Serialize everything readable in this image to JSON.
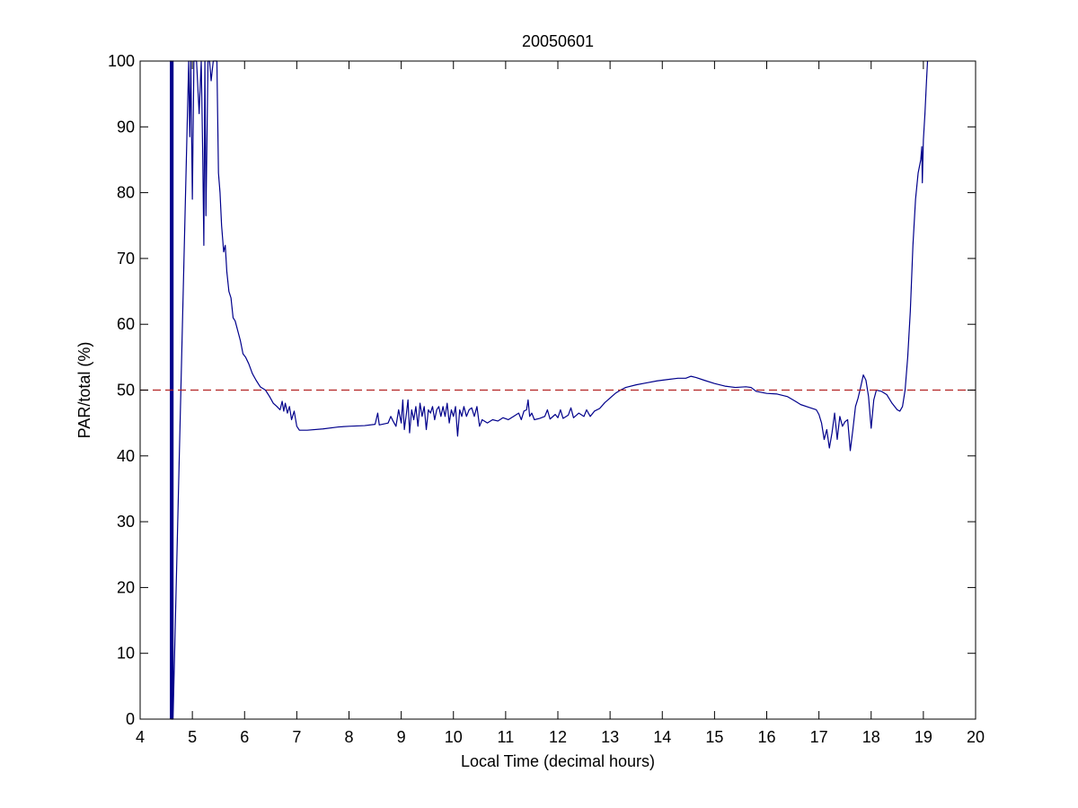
{
  "chart_data": {
    "type": "line",
    "title": "20050601",
    "xlabel": "Local Time (decimal hours)",
    "ylabel": "PAR/total (%)",
    "xlim": [
      4,
      20
    ],
    "ylim": [
      0,
      100
    ],
    "xticks": [
      4,
      5,
      6,
      7,
      8,
      9,
      10,
      11,
      12,
      13,
      14,
      15,
      16,
      17,
      18,
      19,
      20
    ],
    "yticks": [
      0,
      10,
      20,
      30,
      40,
      50,
      60,
      70,
      80,
      90,
      100
    ],
    "grid": false,
    "legend": "none",
    "series": [
      {
        "color": "#00008b",
        "style": "solid",
        "points": [
          [
            4.58,
            0
          ],
          [
            4.58,
            100
          ],
          [
            4.6,
            100
          ],
          [
            4.6,
            0
          ],
          [
            4.62,
            0
          ],
          [
            4.62,
            100
          ],
          [
            4.63,
            100
          ],
          [
            4.63,
            0
          ],
          [
            4.93,
            100
          ],
          [
            4.95,
            88.5
          ],
          [
            4.97,
            100
          ],
          [
            5.0,
            79
          ],
          [
            5.03,
            100
          ],
          [
            5.08,
            100
          ],
          [
            5.13,
            92
          ],
          [
            5.17,
            100
          ],
          [
            5.2,
            85
          ],
          [
            5.22,
            72
          ],
          [
            5.24,
            100
          ],
          [
            5.26,
            76.5
          ],
          [
            5.3,
            100
          ],
          [
            5.33,
            100
          ],
          [
            5.36,
            97
          ],
          [
            5.4,
            100
          ],
          [
            5.44,
            100
          ],
          [
            5.47,
            100
          ],
          [
            5.5,
            83
          ],
          [
            5.53,
            80
          ],
          [
            5.56,
            75
          ],
          [
            5.6,
            71
          ],
          [
            5.63,
            72
          ],
          [
            5.66,
            68
          ],
          [
            5.7,
            65
          ],
          [
            5.74,
            64
          ],
          [
            5.78,
            61
          ],
          [
            5.82,
            60.5
          ],
          [
            5.87,
            59
          ],
          [
            5.92,
            57.5
          ],
          [
            5.97,
            55.5
          ],
          [
            6.02,
            55
          ],
          [
            6.08,
            54
          ],
          [
            6.15,
            52.5
          ],
          [
            6.22,
            51.5
          ],
          [
            6.3,
            50.5
          ],
          [
            6.4,
            50
          ],
          [
            6.48,
            49
          ],
          [
            6.55,
            48
          ],
          [
            6.62,
            47.5
          ],
          [
            6.68,
            47
          ],
          [
            6.72,
            48.3
          ],
          [
            6.75,
            46.8
          ],
          [
            6.78,
            48
          ],
          [
            6.82,
            46.5
          ],
          [
            6.86,
            47.5
          ],
          [
            6.9,
            45.5
          ],
          [
            6.95,
            46.8
          ],
          [
            7.0,
            44.5
          ],
          [
            7.05,
            43.9
          ],
          [
            7.2,
            43.9
          ],
          [
            7.5,
            44.1
          ],
          [
            7.8,
            44.4
          ],
          [
            8.0,
            44.5
          ],
          [
            8.3,
            44.6
          ],
          [
            8.5,
            44.8
          ],
          [
            8.55,
            46.5
          ],
          [
            8.58,
            44.7
          ],
          [
            8.75,
            45.0
          ],
          [
            8.8,
            46
          ],
          [
            8.85,
            45.2
          ],
          [
            8.9,
            44.5
          ],
          [
            8.95,
            47
          ],
          [
            9.0,
            45
          ],
          [
            9.03,
            48.5
          ],
          [
            9.06,
            44
          ],
          [
            9.1,
            46.5
          ],
          [
            9.13,
            48.5
          ],
          [
            9.16,
            43.5
          ],
          [
            9.2,
            47
          ],
          [
            9.24,
            45.5
          ],
          [
            9.28,
            47.5
          ],
          [
            9.32,
            44.5
          ],
          [
            9.36,
            48
          ],
          [
            9.4,
            46
          ],
          [
            9.44,
            47.5
          ],
          [
            9.48,
            44
          ],
          [
            9.52,
            47
          ],
          [
            9.56,
            46.5
          ],
          [
            9.6,
            47.5
          ],
          [
            9.64,
            45.5
          ],
          [
            9.68,
            47
          ],
          [
            9.72,
            47.5
          ],
          [
            9.76,
            46
          ],
          [
            9.8,
            47.5
          ],
          [
            9.84,
            46
          ],
          [
            9.88,
            48
          ],
          [
            9.92,
            45
          ],
          [
            9.96,
            47
          ],
          [
            10.0,
            46
          ],
          [
            10.04,
            47.5
          ],
          [
            10.08,
            43
          ],
          [
            10.12,
            47
          ],
          [
            10.16,
            46
          ],
          [
            10.2,
            47.5
          ],
          [
            10.25,
            46
          ],
          [
            10.3,
            47
          ],
          [
            10.35,
            47.3
          ],
          [
            10.4,
            46
          ],
          [
            10.45,
            47.5
          ],
          [
            10.5,
            44.5
          ],
          [
            10.55,
            45.5
          ],
          [
            10.65,
            45
          ],
          [
            10.75,
            45.5
          ],
          [
            10.85,
            45.3
          ],
          [
            10.95,
            45.8
          ],
          [
            11.05,
            45.5
          ],
          [
            11.15,
            46
          ],
          [
            11.25,
            46.5
          ],
          [
            11.3,
            45.5
          ],
          [
            11.35,
            46.8
          ],
          [
            11.4,
            47
          ],
          [
            11.43,
            48.5
          ],
          [
            11.46,
            46
          ],
          [
            11.5,
            46.5
          ],
          [
            11.55,
            45.5
          ],
          [
            11.65,
            45.7
          ],
          [
            11.75,
            46
          ],
          [
            11.8,
            47
          ],
          [
            11.85,
            45.6
          ],
          [
            11.95,
            46.3
          ],
          [
            12.0,
            45.8
          ],
          [
            12.05,
            47
          ],
          [
            12.1,
            45.7
          ],
          [
            12.2,
            46.2
          ],
          [
            12.25,
            47.3
          ],
          [
            12.3,
            45.8
          ],
          [
            12.4,
            46.5
          ],
          [
            12.5,
            46
          ],
          [
            12.55,
            47
          ],
          [
            12.62,
            46
          ],
          [
            12.7,
            46.8
          ],
          [
            12.8,
            47.2
          ],
          [
            12.9,
            48.1
          ],
          [
            13.0,
            48.8
          ],
          [
            13.1,
            49.5
          ],
          [
            13.2,
            50
          ],
          [
            13.3,
            50.4
          ],
          [
            13.5,
            50.8
          ],
          [
            13.7,
            51.1
          ],
          [
            13.9,
            51.4
          ],
          [
            14.1,
            51.6
          ],
          [
            14.3,
            51.8
          ],
          [
            14.45,
            51.8
          ],
          [
            14.55,
            52.1
          ],
          [
            14.65,
            51.9
          ],
          [
            14.8,
            51.5
          ],
          [
            15.0,
            51
          ],
          [
            15.2,
            50.6
          ],
          [
            15.4,
            50.4
          ],
          [
            15.6,
            50.5
          ],
          [
            15.7,
            50.4
          ],
          [
            15.8,
            49.8
          ],
          [
            16.0,
            49.5
          ],
          [
            16.2,
            49.4
          ],
          [
            16.4,
            49
          ],
          [
            16.55,
            48.3
          ],
          [
            16.65,
            47.8
          ],
          [
            16.8,
            47.4
          ],
          [
            16.95,
            47
          ],
          [
            17.0,
            46.3
          ],
          [
            17.05,
            45
          ],
          [
            17.1,
            42.5
          ],
          [
            17.15,
            44
          ],
          [
            17.2,
            41.2
          ],
          [
            17.25,
            43.5
          ],
          [
            17.3,
            46.5
          ],
          [
            17.35,
            42.5
          ],
          [
            17.4,
            46
          ],
          [
            17.45,
            44.5
          ],
          [
            17.5,
            45.2
          ],
          [
            17.55,
            45.5
          ],
          [
            17.6,
            40.8
          ],
          [
            17.65,
            44
          ],
          [
            17.7,
            47.5
          ],
          [
            17.75,
            48.8
          ],
          [
            17.8,
            50.5
          ],
          [
            17.85,
            52.3
          ],
          [
            17.9,
            51.5
          ],
          [
            17.95,
            49
          ],
          [
            18.0,
            44.2
          ],
          [
            18.05,
            48.5
          ],
          [
            18.1,
            50
          ],
          [
            18.2,
            49.8
          ],
          [
            18.3,
            49.3
          ],
          [
            18.4,
            48
          ],
          [
            18.5,
            47
          ],
          [
            18.55,
            46.8
          ],
          [
            18.6,
            47.5
          ],
          [
            18.65,
            50
          ],
          [
            18.7,
            55
          ],
          [
            18.75,
            62
          ],
          [
            18.8,
            72
          ],
          [
            18.85,
            79
          ],
          [
            18.9,
            83
          ],
          [
            18.95,
            85
          ],
          [
            18.97,
            87
          ],
          [
            18.98,
            81.5
          ],
          [
            19.0,
            88
          ],
          [
            19.03,
            92
          ],
          [
            19.06,
            97
          ],
          [
            19.08,
            100
          ]
        ]
      },
      {
        "color": "#b22222",
        "style": "dashed",
        "points": [
          [
            4,
            50
          ],
          [
            20,
            50
          ]
        ]
      }
    ]
  }
}
